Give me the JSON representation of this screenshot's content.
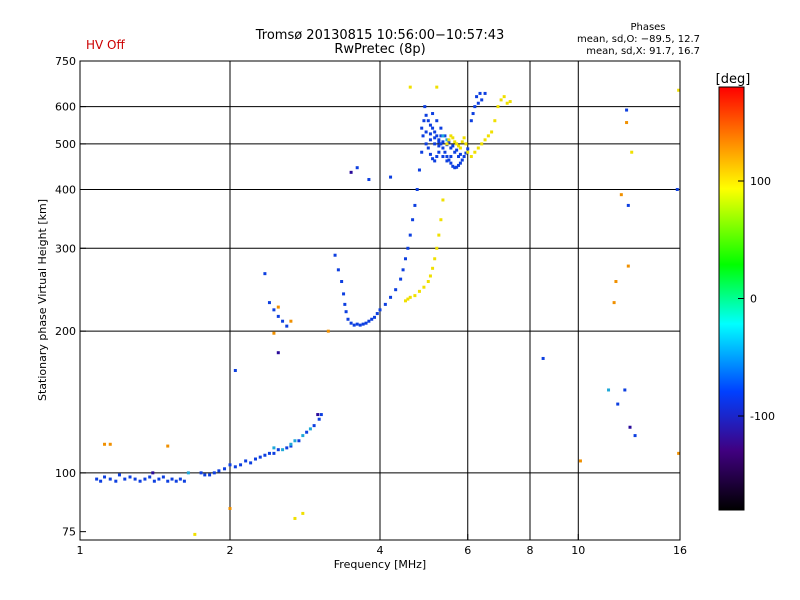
{
  "chart_data": {
    "type": "scatter",
    "title": "Tromsø 20130815 10:56:00−10:57:43",
    "subtitle": "RwPretec (8p)",
    "status_text": "HV Off",
    "xlabel": "Frequency [MHz]",
    "ylabel": "Stationary phase Virtual Height [km]",
    "x_scale": "log2",
    "y_scale": "log",
    "xlim": [
      1,
      16
    ],
    "ylim": [
      72,
      750
    ],
    "x_ticks": [
      1,
      2,
      4,
      6,
      8,
      10,
      16
    ],
    "x_gridlines": [
      2,
      4,
      6,
      8,
      10
    ],
    "y_ticks": [
      75,
      100,
      200,
      300,
      400,
      500,
      600,
      750
    ],
    "y_gridlines": [
      100,
      200,
      300,
      400,
      500,
      600
    ],
    "grid": true,
    "phases": {
      "title": "Phases",
      "line_o": "mean, sd,O: −89.5, 12.7",
      "line_x": "mean, sd,X:  91.7, 16.7"
    },
    "colorbar": {
      "title": "[deg]",
      "range": [
        -180,
        180
      ],
      "ticks": [
        100,
        0,
        -100
      ],
      "colors": [
        "#ff0000",
        "#ff8000",
        "#ffff00",
        "#00ff00",
        "#00ffff",
        "#0040ff",
        "#400080",
        "#000000"
      ]
    },
    "series": [
      {
        "color": "#0d3fe0",
        "points": [
          [
            1.08,
            97
          ],
          [
            1.1,
            96
          ],
          [
            1.12,
            98
          ],
          [
            1.15,
            97
          ],
          [
            1.18,
            96
          ],
          [
            1.2,
            99
          ],
          [
            1.23,
            97
          ],
          [
            1.26,
            98
          ],
          [
            1.29,
            97
          ],
          [
            1.32,
            96
          ],
          [
            1.35,
            97
          ],
          [
            1.38,
            98
          ],
          [
            1.41,
            96
          ],
          [
            1.44,
            97
          ],
          [
            1.47,
            98
          ],
          [
            1.5,
            96
          ],
          [
            1.53,
            97
          ],
          [
            1.56,
            96
          ],
          [
            1.59,
            97
          ],
          [
            1.62,
            96
          ],
          [
            1.75,
            100
          ],
          [
            1.78,
            99
          ],
          [
            1.82,
            99
          ],
          [
            1.86,
            100
          ],
          [
            1.9,
            101
          ],
          [
            1.95,
            102
          ],
          [
            2.0,
            104
          ],
          [
            2.05,
            103
          ],
          [
            2.1,
            104
          ],
          [
            2.15,
            106
          ],
          [
            2.2,
            105
          ],
          [
            2.25,
            107
          ],
          [
            2.3,
            108
          ],
          [
            2.35,
            109
          ],
          [
            2.4,
            110
          ],
          [
            2.45,
            110
          ],
          [
            2.5,
            112
          ],
          [
            2.6,
            113
          ],
          [
            2.65,
            114
          ],
          [
            2.75,
            117
          ],
          [
            2.85,
            122
          ],
          [
            2.95,
            126
          ],
          [
            3.02,
            130
          ],
          [
            3.05,
            133
          ],
          [
            2.4,
            230
          ],
          [
            2.45,
            222
          ],
          [
            2.5,
            215
          ],
          [
            2.55,
            210
          ],
          [
            2.6,
            205
          ],
          [
            2.35,
            265
          ],
          [
            3.25,
            290
          ],
          [
            3.3,
            270
          ],
          [
            3.35,
            255
          ],
          [
            3.38,
            240
          ],
          [
            3.4,
            228
          ],
          [
            3.42,
            220
          ],
          [
            3.45,
            212
          ],
          [
            3.5,
            208
          ],
          [
            3.55,
            206
          ],
          [
            3.6,
            207
          ],
          [
            3.65,
            206
          ],
          [
            3.7,
            207
          ],
          [
            3.75,
            208
          ],
          [
            3.8,
            210
          ],
          [
            3.85,
            212
          ],
          [
            3.9,
            214
          ],
          [
            3.95,
            218
          ],
          [
            4.0,
            222
          ],
          [
            4.1,
            228
          ],
          [
            4.2,
            236
          ],
          [
            4.3,
            245
          ],
          [
            4.4,
            258
          ],
          [
            4.45,
            270
          ],
          [
            4.5,
            285
          ],
          [
            4.55,
            300
          ],
          [
            4.6,
            320
          ],
          [
            4.65,
            345
          ],
          [
            4.7,
            370
          ],
          [
            4.75,
            400
          ],
          [
            4.8,
            440
          ],
          [
            4.85,
            480
          ],
          [
            4.88,
            520
          ],
          [
            4.9,
            560
          ],
          [
            4.92,
            600
          ],
          [
            4.95,
            575
          ],
          [
            5.0,
            560
          ],
          [
            5.05,
            548
          ],
          [
            5.1,
            540
          ],
          [
            5.15,
            530
          ],
          [
            5.2,
            520
          ],
          [
            5.25,
            510
          ],
          [
            5.3,
            500
          ],
          [
            5.35,
            490
          ],
          [
            5.4,
            480
          ],
          [
            5.45,
            470
          ],
          [
            5.5,
            462
          ],
          [
            5.55,
            455
          ],
          [
            5.6,
            448
          ],
          [
            5.65,
            445
          ],
          [
            5.7,
            446
          ],
          [
            5.75,
            450
          ],
          [
            5.8,
            455
          ],
          [
            5.85,
            462
          ],
          [
            5.9,
            470
          ],
          [
            5.95,
            478
          ],
          [
            6.0,
            488
          ],
          [
            4.95,
            500
          ],
          [
            5.0,
            490
          ],
          [
            5.05,
            475
          ],
          [
            5.1,
            465
          ],
          [
            5.15,
            460
          ],
          [
            5.2,
            470
          ],
          [
            5.25,
            480
          ],
          [
            5.3,
            520
          ],
          [
            5.1,
            580
          ],
          [
            5.2,
            560
          ],
          [
            5.3,
            540
          ],
          [
            5.4,
            520
          ],
          [
            5.5,
            505
          ],
          [
            5.6,
            495
          ],
          [
            5.7,
            485
          ],
          [
            5.8,
            475
          ],
          [
            5.05,
            510
          ],
          [
            5.15,
            500
          ],
          [
            5.25,
            495
          ],
          [
            5.35,
            505
          ],
          [
            5.45,
            498
          ],
          [
            5.55,
            490
          ],
          [
            5.65,
            480
          ],
          [
            5.75,
            470
          ],
          [
            4.85,
            540
          ],
          [
            4.95,
            530
          ],
          [
            5.05,
            525
          ],
          [
            5.15,
            515
          ],
          [
            5.25,
            505
          ],
          [
            5.35,
            470
          ],
          [
            5.45,
            460
          ],
          [
            5.55,
            470
          ],
          [
            6.1,
            560
          ],
          [
            6.15,
            580
          ],
          [
            6.2,
            600
          ],
          [
            6.25,
            630
          ],
          [
            6.3,
            610
          ],
          [
            6.35,
            640
          ],
          [
            6.4,
            620
          ],
          [
            6.5,
            640
          ],
          [
            3.6,
            445
          ],
          [
            3.8,
            420
          ],
          [
            4.2,
            425
          ],
          [
            2.05,
            165
          ],
          [
            8.5,
            175
          ],
          [
            12.5,
            590
          ],
          [
            12.6,
            370
          ],
          [
            15.8,
            400
          ],
          [
            12.4,
            150
          ],
          [
            12.0,
            140
          ],
          [
            13.0,
            120
          ]
        ]
      },
      {
        "color": "#1fa8d8",
        "points": [
          [
            2.7,
            117
          ],
          [
            2.8,
            120
          ],
          [
            2.9,
            124
          ],
          [
            2.55,
            112
          ],
          [
            2.65,
            115
          ],
          [
            2.45,
            113
          ],
          [
            1.65,
            100
          ],
          [
            5.35,
            520
          ],
          [
            5.45,
            510
          ],
          [
            11.5,
            150
          ]
        ]
      },
      {
        "color": "#f0e000",
        "points": [
          [
            4.5,
            232
          ],
          [
            4.55,
            234
          ],
          [
            4.6,
            236
          ],
          [
            4.7,
            238
          ],
          [
            4.8,
            243
          ],
          [
            4.9,
            248
          ],
          [
            5.0,
            255
          ],
          [
            5.05,
            262
          ],
          [
            5.1,
            272
          ],
          [
            5.15,
            285
          ],
          [
            5.2,
            300
          ],
          [
            5.25,
            320
          ],
          [
            5.3,
            345
          ],
          [
            5.35,
            380
          ],
          [
            5.45,
            500
          ],
          [
            5.5,
            510
          ],
          [
            5.55,
            520
          ],
          [
            5.6,
            515
          ],
          [
            5.65,
            505
          ],
          [
            5.7,
            500
          ],
          [
            5.75,
            495
          ],
          [
            5.8,
            490
          ],
          [
            5.85,
            505
          ],
          [
            5.9,
            515
          ],
          [
            5.95,
            500
          ],
          [
            6.0,
            480
          ],
          [
            6.1,
            470
          ],
          [
            6.2,
            480
          ],
          [
            6.3,
            490
          ],
          [
            6.4,
            500
          ],
          [
            6.5,
            510
          ],
          [
            6.6,
            520
          ],
          [
            6.7,
            530
          ],
          [
            6.8,
            560
          ],
          [
            6.9,
            600
          ],
          [
            7.0,
            620
          ],
          [
            7.1,
            630
          ],
          [
            7.2,
            610
          ],
          [
            7.3,
            615
          ],
          [
            4.6,
            660
          ],
          [
            5.2,
            660
          ],
          [
            1.7,
            74
          ],
          [
            2.7,
            80
          ],
          [
            2.8,
            82
          ],
          [
            12.8,
            480
          ],
          [
            15.9,
            650
          ]
        ]
      },
      {
        "color": "#f09000",
        "points": [
          [
            1.12,
            115
          ],
          [
            1.15,
            115
          ],
          [
            1.5,
            114
          ],
          [
            2.0,
            84
          ],
          [
            2.5,
            225
          ],
          [
            12.5,
            555
          ],
          [
            12.6,
            275
          ],
          [
            11.9,
            255
          ],
          [
            10.1,
            106
          ],
          [
            15.9,
            110
          ],
          [
            3.15,
            200
          ],
          [
            2.45,
            198
          ],
          [
            2.65,
            210
          ],
          [
            11.8,
            230
          ],
          [
            12.2,
            390
          ]
        ]
      },
      {
        "color": "#2a0a9a",
        "points": [
          [
            1.4,
            100
          ],
          [
            2.5,
            180
          ],
          [
            3.0,
            133
          ],
          [
            3.5,
            435
          ],
          [
            12.7,
            125
          ]
        ]
      }
    ]
  }
}
